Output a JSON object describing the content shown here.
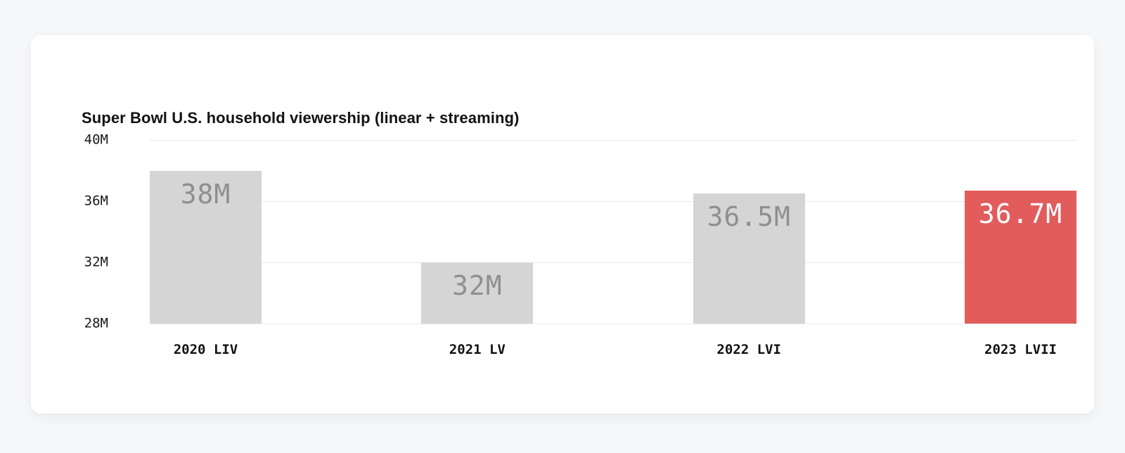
{
  "page": {
    "background": "#f6f7f8",
    "card_background": "#ffffff"
  },
  "chart_data": {
    "type": "bar",
    "title": "Super Bowl U.S. household viewership (linear + streaming)",
    "categories": [
      "2020 LIV",
      "2021 LV",
      "2022 LVI",
      "2023 LVII"
    ],
    "values": [
      38,
      32,
      36.5,
      36.7
    ],
    "value_labels": [
      "38M",
      "32M",
      "36.5M",
      "36.7M"
    ],
    "highlight_index": 3,
    "ylim": [
      28,
      40
    ],
    "y_ticks": [
      {
        "value": 40,
        "label": "40M"
      },
      {
        "value": 36,
        "label": "36M"
      },
      {
        "value": 32,
        "label": "32M"
      },
      {
        "value": 28,
        "label": "28M"
      }
    ],
    "grid": true,
    "legend_position": "none",
    "colors": {
      "bar": "#d5d5d5",
      "bar_highlight": "#e25c5c",
      "value_label": "#8f8f8f",
      "value_label_highlight": "#ffffff",
      "gridline": "#e8eaed",
      "axis_text": "#1b1b1b"
    }
  }
}
